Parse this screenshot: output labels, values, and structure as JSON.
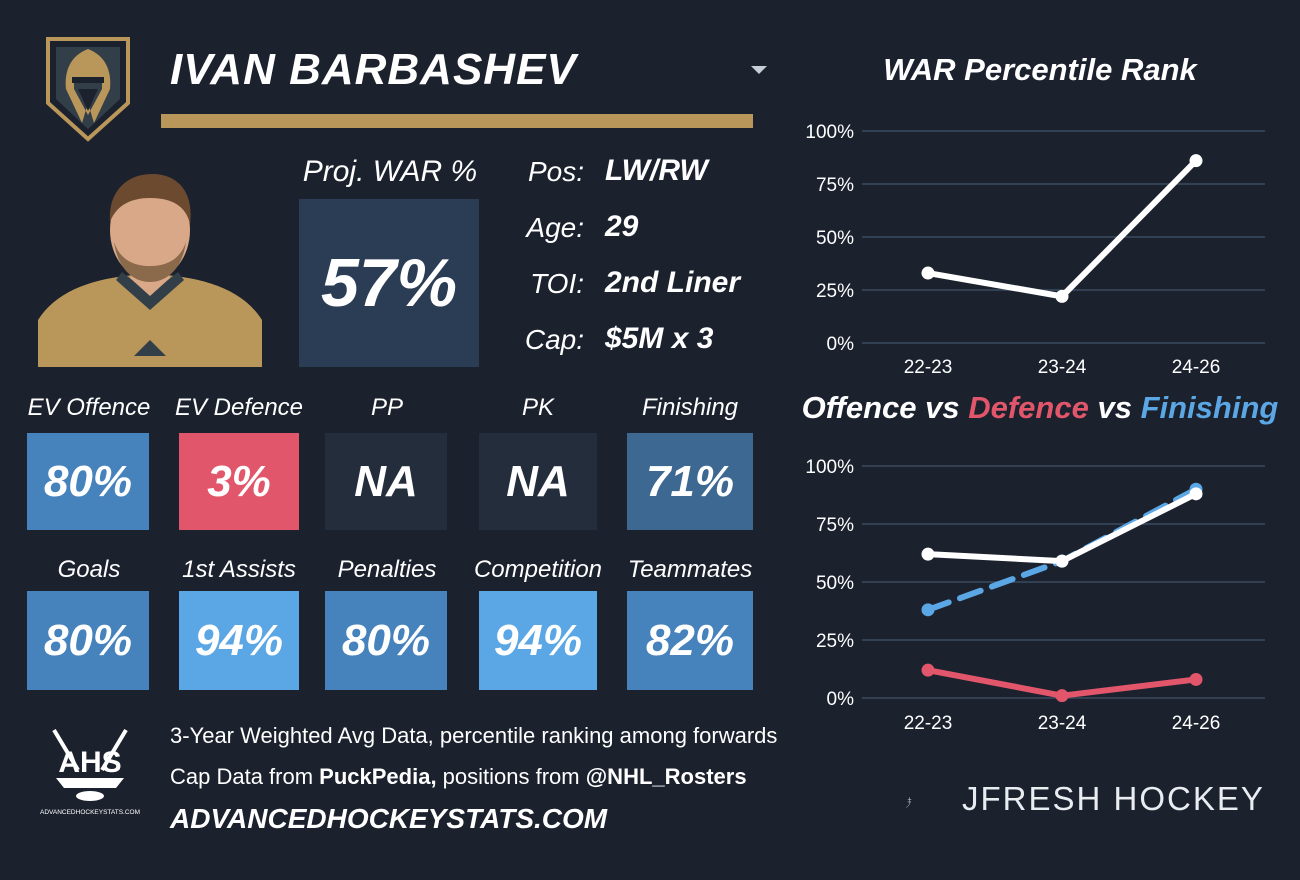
{
  "player": {
    "name": "IVAN BARBASHEV",
    "team_logo_icon": "vegas-golden-knights-logo",
    "photo_icon": "player-headshot",
    "dropdown_icon": "chevron-down-icon"
  },
  "projection": {
    "label": "Proj. WAR %",
    "value": "57%"
  },
  "info": [
    {
      "label": "Pos:",
      "value": "LW/RW"
    },
    {
      "label": "Age:",
      "value": "29"
    },
    {
      "label": "TOI:",
      "value": "2nd Liner"
    },
    {
      "label": "Cap:",
      "value": "$5M x 3"
    }
  ],
  "tiles_row1": [
    {
      "label": "EV Offence",
      "value": "80%",
      "color": "#4683bd"
    },
    {
      "label": "EV Defence",
      "value": "3%",
      "color": "#e2566b"
    },
    {
      "label": "PP",
      "value": "NA",
      "color": "#232d3b"
    },
    {
      "label": "PK",
      "value": "NA",
      "color": "#232d3b"
    },
    {
      "label": "Finishing",
      "value": "71%",
      "color": "#3d6891"
    }
  ],
  "tiles_row2": [
    {
      "label": "Goals",
      "value": "80%",
      "color": "#4683bd"
    },
    {
      "label": "1st Assists",
      "value": "94%",
      "color": "#5ba6e4"
    },
    {
      "label": "Penalties",
      "value": "80%",
      "color": "#4683bd"
    },
    {
      "label": "Competition",
      "value": "94%",
      "color": "#5ba6e4"
    },
    {
      "label": "Teammates",
      "value": "82%",
      "color": "#4683bd"
    }
  ],
  "footer": {
    "line1": "3-Year Weighted Avg Data, percentile ranking among forwards",
    "line2_prefix": "Cap Data from ",
    "line2_source1": "PuckPedia,",
    "line2_middle": " positions from ",
    "line2_source2": "@NHL_Rosters",
    "site": "ADVANCEDHOCKEYSTATS.COM",
    "ahs_logo_icon": "ahs-logo",
    "brand": "JFRESH HOCKEY",
    "brand_icon": "jfresh-logo-icon"
  },
  "chart_data": [
    {
      "type": "line",
      "title": "WAR Percentile Rank",
      "categories": [
        "22-23",
        "23-24",
        "24-26"
      ],
      "yticks": [
        "0%",
        "25%",
        "50%",
        "75%",
        "100%"
      ],
      "ylim": [
        0,
        100
      ],
      "grid": true,
      "series": [
        {
          "values": [
            33,
            22,
            86
          ],
          "color": "#ffffff",
          "dash": false
        }
      ]
    },
    {
      "type": "line",
      "title_parts": [
        {
          "text": "Offence",
          "color": "#ffffff"
        },
        {
          "text": " vs ",
          "color": "#ffffff"
        },
        {
          "text": "Defence",
          "color": "#e2566b"
        },
        {
          "text": " vs ",
          "color": "#ffffff"
        },
        {
          "text": "Finishing",
          "color": "#5ba6e4"
        }
      ],
      "categories": [
        "22-23",
        "23-24",
        "24-26"
      ],
      "yticks": [
        "0%",
        "25%",
        "50%",
        "75%",
        "100%"
      ],
      "ylim": [
        0,
        100
      ],
      "grid": true,
      "series": [
        {
          "values": [
            38,
            59,
            90
          ],
          "color": "#5ba6e4",
          "dash": true
        },
        {
          "values": [
            12,
            1,
            8
          ],
          "color": "#e2566b",
          "dash": false
        },
        {
          "values": [
            62,
            59,
            88
          ],
          "color": "#ffffff",
          "dash": false
        }
      ]
    }
  ]
}
